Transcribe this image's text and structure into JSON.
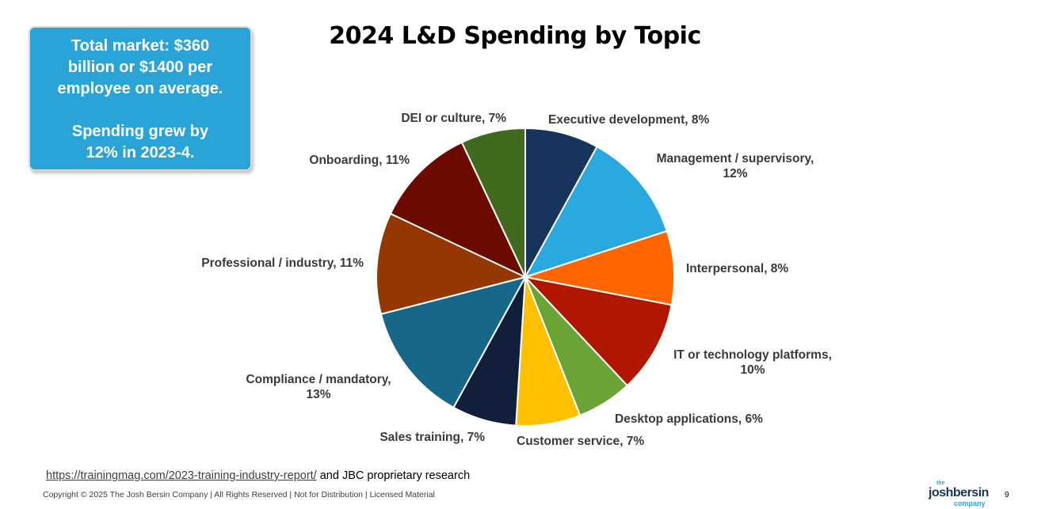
{
  "callout": {
    "line1": "Total market: $360",
    "line2": "billion or $1400 per",
    "line3": "employee on average.",
    "line4": "Spending grew by",
    "line5": "12% in 2023-4."
  },
  "chart_data": {
    "type": "pie",
    "title": "2024 L&D Spending by Topic",
    "start": "12 o'clock, clockwise",
    "slices": [
      {
        "label": "Executive development",
        "value": 8,
        "color": "#17345c",
        "label_lines": [
          "Executive development, 8%"
        ]
      },
      {
        "label": "Management / supervisory",
        "value": 12,
        "color": "#29a9dd",
        "label_lines": [
          "Management / supervisory,",
          "12%"
        ]
      },
      {
        "label": "Interpersonal",
        "value": 8,
        "color": "#ff6600",
        "label_lines": [
          "Interpersonal, 8%"
        ]
      },
      {
        "label": "IT or technology platforms",
        "value": 10,
        "color": "#b01600",
        "label_lines": [
          "IT or technology platforms,",
          "10%"
        ]
      },
      {
        "label": "Desktop applications",
        "value": 6,
        "color": "#6aa436",
        "label_lines": [
          "Desktop applications, 6%"
        ]
      },
      {
        "label": "Customer service",
        "value": 7,
        "color": "#ffc000",
        "label_lines": [
          "Customer service, 7%"
        ]
      },
      {
        "label": "Sales training",
        "value": 7,
        "color": "#121f3a",
        "label_lines": [
          "Sales training, 7%"
        ]
      },
      {
        "label": "Compliance / mandatory",
        "value": 13,
        "color": "#176788",
        "label_lines": [
          "Compliance / mandatory,",
          "13%"
        ]
      },
      {
        "label": "Professional / industry",
        "value": 11,
        "color": "#953700",
        "label_lines": [
          "Professional / industry, 11%"
        ]
      },
      {
        "label": "Onboarding",
        "value": 11,
        "color": "#6b0b00",
        "label_lines": [
          "Onboarding, 11%"
        ]
      },
      {
        "label": "DEI or culture",
        "value": 7,
        "color": "#426a1e",
        "label_lines": [
          "DEI or culture, 7%"
        ]
      }
    ]
  },
  "footer": {
    "source_link": "https://trainingmag.com/2023-training-industry-report/",
    "source_rest": " and JBC proprietary research",
    "copyright": "Copyright © 2025 The Josh Bersin Company | All Rights Reserved | Not for Distribution | Licensed Material",
    "logo_the": "the",
    "logo_name": "joshbersin",
    "logo_company": "company",
    "page_number": "9"
  }
}
